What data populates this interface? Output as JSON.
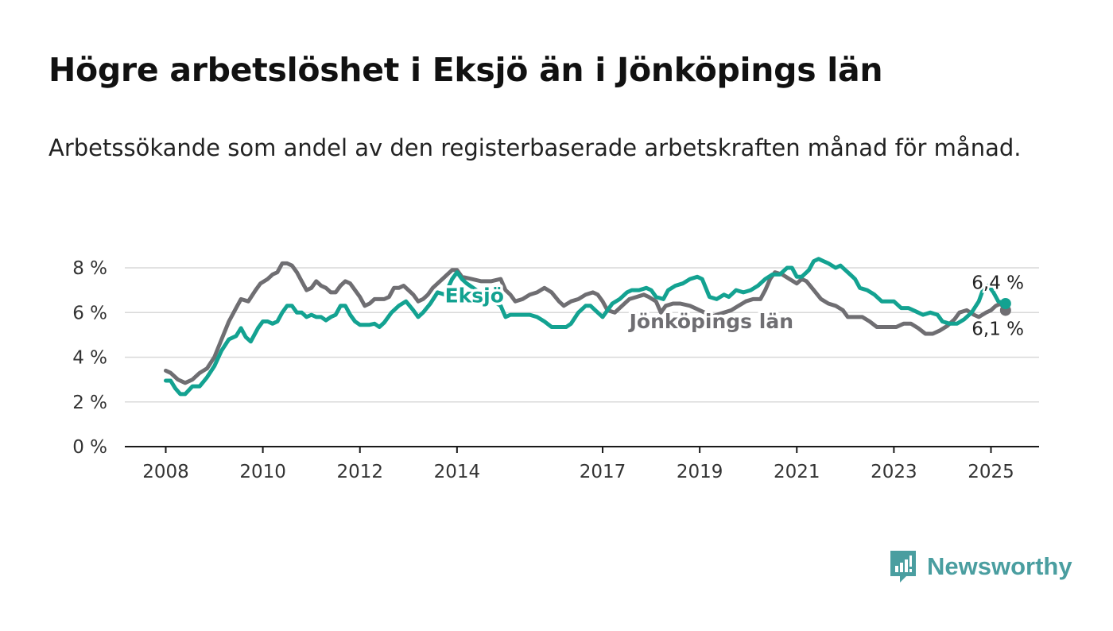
{
  "title": "Högre arbetslöshet i Eksjö än i Jönköpings län",
  "subtitle": "Arbetssökande som andel av den registerbaserade arbetskraften månad för månad.",
  "brand": {
    "name": "Newsworthy",
    "icon": "newsworthy-logo-icon",
    "color": "#4a9ea0"
  },
  "chart_data": {
    "type": "line",
    "title": "",
    "xlabel": "",
    "ylabel": "",
    "ylim": [
      0,
      8
    ],
    "xlim": [
      2007.4,
      2026.0
    ],
    "grid": "horizontal",
    "yticks": [
      0,
      2,
      4,
      6,
      8
    ],
    "ytick_labels": [
      "0 %",
      "2 %",
      "4 %",
      "6 %",
      "8 %"
    ],
    "xticks": [
      2008,
      2010,
      2012,
      2014,
      2017,
      2019,
      2021,
      2023,
      2025
    ],
    "xtick_labels": [
      "2008",
      "2010",
      "2012",
      "2014",
      "2017",
      "2019",
      "2021",
      "2023",
      "2025"
    ],
    "series": [
      {
        "name": "Jönköpings län",
        "color": "#6f6e72",
        "end_label": "6,1 %",
        "points": [
          [
            2008.0,
            3.4
          ],
          [
            2008.1,
            3.3
          ],
          [
            2008.25,
            3.0
          ],
          [
            2008.4,
            2.85
          ],
          [
            2008.55,
            3.0
          ],
          [
            2008.7,
            3.3
          ],
          [
            2008.85,
            3.5
          ],
          [
            2009.0,
            4.0
          ],
          [
            2009.15,
            4.8
          ],
          [
            2009.3,
            5.6
          ],
          [
            2009.45,
            6.2
          ],
          [
            2009.55,
            6.6
          ],
          [
            2009.7,
            6.5
          ],
          [
            2009.85,
            7.0
          ],
          [
            2009.95,
            7.3
          ],
          [
            2010.1,
            7.5
          ],
          [
            2010.2,
            7.7
          ],
          [
            2010.3,
            7.8
          ],
          [
            2010.4,
            8.2
          ],
          [
            2010.5,
            8.2
          ],
          [
            2010.6,
            8.1
          ],
          [
            2010.7,
            7.8
          ],
          [
            2010.8,
            7.4
          ],
          [
            2010.9,
            7.0
          ],
          [
            2011.0,
            7.1
          ],
          [
            2011.1,
            7.4
          ],
          [
            2011.2,
            7.2
          ],
          [
            2011.3,
            7.1
          ],
          [
            2011.4,
            6.9
          ],
          [
            2011.5,
            6.9
          ],
          [
            2011.6,
            7.2
          ],
          [
            2011.7,
            7.4
          ],
          [
            2011.8,
            7.3
          ],
          [
            2011.9,
            7.0
          ],
          [
            2012.0,
            6.7
          ],
          [
            2012.1,
            6.3
          ],
          [
            2012.2,
            6.4
          ],
          [
            2012.3,
            6.6
          ],
          [
            2012.5,
            6.6
          ],
          [
            2012.6,
            6.7
          ],
          [
            2012.7,
            7.1
          ],
          [
            2012.8,
            7.1
          ],
          [
            2012.9,
            7.2
          ],
          [
            2013.0,
            7.0
          ],
          [
            2013.1,
            6.8
          ],
          [
            2013.2,
            6.5
          ],
          [
            2013.3,
            6.6
          ],
          [
            2013.4,
            6.8
          ],
          [
            2013.5,
            7.1
          ],
          [
            2013.6,
            7.3
          ],
          [
            2013.7,
            7.5
          ],
          [
            2013.8,
            7.7
          ],
          [
            2013.9,
            7.9
          ],
          [
            2014.0,
            7.9
          ],
          [
            2014.1,
            7.6
          ],
          [
            2014.3,
            7.5
          ],
          [
            2014.5,
            7.4
          ],
          [
            2014.7,
            7.4
          ],
          [
            2014.9,
            7.5
          ],
          [
            2015.0,
            7.0
          ],
          [
            2015.1,
            6.8
          ],
          [
            2015.2,
            6.5
          ],
          [
            2015.35,
            6.6
          ],
          [
            2015.5,
            6.8
          ],
          [
            2015.65,
            6.9
          ],
          [
            2015.8,
            7.1
          ],
          [
            2015.95,
            6.9
          ],
          [
            2016.1,
            6.5
          ],
          [
            2016.2,
            6.3
          ],
          [
            2016.35,
            6.5
          ],
          [
            2016.5,
            6.6
          ],
          [
            2016.65,
            6.8
          ],
          [
            2016.8,
            6.9
          ],
          [
            2016.9,
            6.8
          ],
          [
            2017.0,
            6.5
          ],
          [
            2017.1,
            6.1
          ],
          [
            2017.25,
            6.0
          ],
          [
            2017.4,
            6.3
          ],
          [
            2017.55,
            6.6
          ],
          [
            2017.7,
            6.7
          ],
          [
            2017.85,
            6.8
          ],
          [
            2017.95,
            6.7
          ],
          [
            2018.1,
            6.5
          ],
          [
            2018.2,
            6.0
          ],
          [
            2018.3,
            6.3
          ],
          [
            2018.45,
            6.4
          ],
          [
            2018.6,
            6.4
          ],
          [
            2018.8,
            6.3
          ],
          [
            2019.0,
            6.1
          ],
          [
            2019.1,
            6.0
          ],
          [
            2019.2,
            5.8
          ],
          [
            2019.35,
            5.9
          ],
          [
            2019.5,
            6.0
          ],
          [
            2019.65,
            6.1
          ],
          [
            2019.8,
            6.3
          ],
          [
            2019.95,
            6.5
          ],
          [
            2020.1,
            6.6
          ],
          [
            2020.25,
            6.6
          ],
          [
            2020.35,
            7.0
          ],
          [
            2020.45,
            7.5
          ],
          [
            2020.55,
            7.8
          ],
          [
            2020.7,
            7.7
          ],
          [
            2020.85,
            7.5
          ],
          [
            2021.0,
            7.3
          ],
          [
            2021.1,
            7.5
          ],
          [
            2021.2,
            7.4
          ],
          [
            2021.35,
            7.0
          ],
          [
            2021.5,
            6.6
          ],
          [
            2021.65,
            6.4
          ],
          [
            2021.8,
            6.3
          ],
          [
            2021.95,
            6.1
          ],
          [
            2022.05,
            5.8
          ],
          [
            2022.2,
            5.8
          ],
          [
            2022.35,
            5.8
          ],
          [
            2022.5,
            5.6
          ],
          [
            2022.65,
            5.35
          ],
          [
            2022.8,
            5.35
          ],
          [
            2022.95,
            5.35
          ],
          [
            2023.05,
            5.35
          ],
          [
            2023.2,
            5.5
          ],
          [
            2023.35,
            5.5
          ],
          [
            2023.5,
            5.3
          ],
          [
            2023.65,
            5.05
          ],
          [
            2023.8,
            5.05
          ],
          [
            2023.95,
            5.2
          ],
          [
            2024.1,
            5.4
          ],
          [
            2024.25,
            5.7
          ],
          [
            2024.35,
            6.0
          ],
          [
            2024.5,
            6.1
          ],
          [
            2024.65,
            5.9
          ],
          [
            2024.75,
            5.8
          ],
          [
            2024.9,
            6.0
          ],
          [
            2025.0,
            6.1
          ],
          [
            2025.1,
            6.3
          ],
          [
            2025.2,
            6.4
          ],
          [
            2025.3,
            6.1
          ]
        ]
      },
      {
        "name": "Eksjö",
        "color": "#13a291",
        "end_label": "6,4 %",
        "points": [
          [
            2008.0,
            2.95
          ],
          [
            2008.1,
            2.95
          ],
          [
            2008.2,
            2.6
          ],
          [
            2008.3,
            2.35
          ],
          [
            2008.4,
            2.35
          ],
          [
            2008.55,
            2.7
          ],
          [
            2008.7,
            2.7
          ],
          [
            2008.85,
            3.1
          ],
          [
            2009.0,
            3.6
          ],
          [
            2009.15,
            4.3
          ],
          [
            2009.3,
            4.8
          ],
          [
            2009.45,
            4.95
          ],
          [
            2009.55,
            5.3
          ],
          [
            2009.65,
            4.9
          ],
          [
            2009.75,
            4.7
          ],
          [
            2009.9,
            5.3
          ],
          [
            2010.0,
            5.6
          ],
          [
            2010.1,
            5.6
          ],
          [
            2010.2,
            5.5
          ],
          [
            2010.3,
            5.6
          ],
          [
            2010.4,
            6.0
          ],
          [
            2010.5,
            6.3
          ],
          [
            2010.6,
            6.3
          ],
          [
            2010.7,
            6.0
          ],
          [
            2010.8,
            6.0
          ],
          [
            2010.9,
            5.8
          ],
          [
            2011.0,
            5.9
          ],
          [
            2011.1,
            5.8
          ],
          [
            2011.2,
            5.8
          ],
          [
            2011.3,
            5.65
          ],
          [
            2011.4,
            5.8
          ],
          [
            2011.5,
            5.9
          ],
          [
            2011.6,
            6.3
          ],
          [
            2011.7,
            6.3
          ],
          [
            2011.8,
            5.9
          ],
          [
            2011.9,
            5.6
          ],
          [
            2012.0,
            5.45
          ],
          [
            2012.2,
            5.45
          ],
          [
            2012.3,
            5.5
          ],
          [
            2012.4,
            5.35
          ],
          [
            2012.5,
            5.55
          ],
          [
            2012.65,
            6.0
          ],
          [
            2012.8,
            6.3
          ],
          [
            2012.95,
            6.5
          ],
          [
            2013.1,
            6.1
          ],
          [
            2013.2,
            5.8
          ],
          [
            2013.3,
            6.0
          ],
          [
            2013.45,
            6.4
          ],
          [
            2013.6,
            6.9
          ],
          [
            2013.75,
            6.8
          ],
          [
            2013.9,
            7.5
          ],
          [
            2014.0,
            7.8
          ],
          [
            2014.1,
            7.5
          ],
          [
            2014.2,
            7.3
          ],
          [
            2014.6,
            6.7
          ],
          [
            2014.9,
            6.3
          ],
          [
            2015.0,
            5.8
          ],
          [
            2015.1,
            5.9
          ],
          [
            2015.3,
            5.9
          ],
          [
            2015.5,
            5.9
          ],
          [
            2015.65,
            5.8
          ],
          [
            2015.8,
            5.6
          ],
          [
            2015.95,
            5.35
          ],
          [
            2016.1,
            5.35
          ],
          [
            2016.25,
            5.35
          ],
          [
            2016.35,
            5.5
          ],
          [
            2016.5,
            6.0
          ],
          [
            2016.65,
            6.3
          ],
          [
            2016.75,
            6.3
          ],
          [
            2016.9,
            6.0
          ],
          [
            2017.0,
            5.8
          ],
          [
            2017.1,
            6.1
          ],
          [
            2017.2,
            6.4
          ],
          [
            2017.35,
            6.6
          ],
          [
            2017.5,
            6.9
          ],
          [
            2017.6,
            7.0
          ],
          [
            2017.75,
            7.0
          ],
          [
            2017.9,
            7.1
          ],
          [
            2018.0,
            7.0
          ],
          [
            2018.1,
            6.7
          ],
          [
            2018.25,
            6.6
          ],
          [
            2018.35,
            7.0
          ],
          [
            2018.5,
            7.2
          ],
          [
            2018.65,
            7.3
          ],
          [
            2018.8,
            7.5
          ],
          [
            2018.95,
            7.6
          ],
          [
            2019.05,
            7.5
          ],
          [
            2019.2,
            6.7
          ],
          [
            2019.35,
            6.6
          ],
          [
            2019.5,
            6.8
          ],
          [
            2019.6,
            6.7
          ],
          [
            2019.75,
            7.0
          ],
          [
            2019.9,
            6.9
          ],
          [
            2020.05,
            7.0
          ],
          [
            2020.2,
            7.2
          ],
          [
            2020.35,
            7.5
          ],
          [
            2020.5,
            7.7
          ],
          [
            2020.65,
            7.7
          ],
          [
            2020.8,
            8.0
          ],
          [
            2020.9,
            8.0
          ],
          [
            2021.0,
            7.6
          ],
          [
            2021.1,
            7.6
          ],
          [
            2021.25,
            7.9
          ],
          [
            2021.35,
            8.3
          ],
          [
            2021.45,
            8.4
          ],
          [
            2021.55,
            8.3
          ],
          [
            2021.65,
            8.2
          ],
          [
            2021.8,
            8.0
          ],
          [
            2021.9,
            8.1
          ],
          [
            2022.0,
            7.9
          ],
          [
            2022.1,
            7.7
          ],
          [
            2022.2,
            7.5
          ],
          [
            2022.3,
            7.1
          ],
          [
            2022.45,
            7.0
          ],
          [
            2022.6,
            6.8
          ],
          [
            2022.75,
            6.5
          ],
          [
            2022.9,
            6.5
          ],
          [
            2023.0,
            6.5
          ],
          [
            2023.15,
            6.2
          ],
          [
            2023.3,
            6.2
          ],
          [
            2023.45,
            6.05
          ],
          [
            2023.6,
            5.9
          ],
          [
            2023.75,
            6.0
          ],
          [
            2023.9,
            5.9
          ],
          [
            2024.0,
            5.6
          ],
          [
            2024.15,
            5.5
          ],
          [
            2024.3,
            5.5
          ],
          [
            2024.45,
            5.7
          ],
          [
            2024.6,
            6.0
          ],
          [
            2024.75,
            6.5
          ],
          [
            2024.85,
            7.1
          ],
          [
            2024.95,
            7.2
          ],
          [
            2025.05,
            6.9
          ],
          [
            2025.15,
            6.5
          ],
          [
            2025.3,
            6.4
          ]
        ]
      }
    ],
    "series_labels": [
      "Eksjö",
      "Jönköpings län"
    ]
  }
}
